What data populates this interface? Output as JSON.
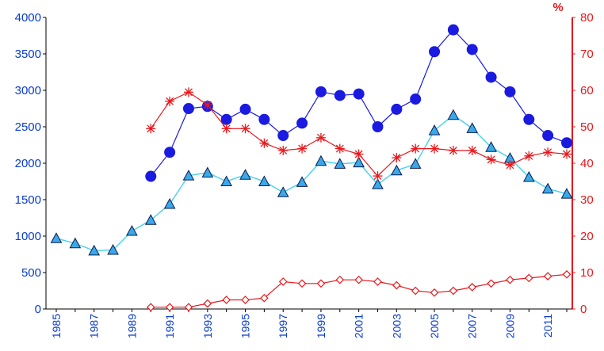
{
  "chart_data": {
    "type": "line",
    "x": [
      1985,
      1986,
      1987,
      1988,
      1989,
      1990,
      1991,
      1992,
      1993,
      1994,
      1995,
      1996,
      1997,
      1998,
      1999,
      2000,
      2001,
      2002,
      2003,
      2004,
      2005,
      2006,
      2007,
      2008,
      2009,
      2010,
      2011,
      2012
    ],
    "x_tick_labels": [
      "1985",
      "1987",
      "1989",
      "1991",
      "1993",
      "1995",
      "1997",
      "1999",
      "2001",
      "2003",
      "2005",
      "2007",
      "2009",
      "2011"
    ],
    "y_left": {
      "lim": [
        0,
        4000
      ],
      "ticks": [
        "0",
        "500",
        "1000",
        "1500",
        "2000",
        "2500",
        "3000",
        "3500",
        "4000"
      ],
      "color": "#0a3ccf"
    },
    "y_right": {
      "lim": [
        0,
        80
      ],
      "ticks": [
        "0",
        "10",
        "20",
        "30",
        "40",
        "50",
        "60",
        "70",
        "80"
      ],
      "unit": "%",
      "color": "#e8181c"
    },
    "grid": false,
    "series": [
      {
        "axis": "left",
        "marker": "circle",
        "color": "#1a1ae0",
        "values": [
          null,
          null,
          null,
          null,
          null,
          1820,
          2150,
          2750,
          2780,
          2600,
          2740,
          2600,
          2380,
          2550,
          2980,
          2930,
          2950,
          2500,
          2740,
          2880,
          3530,
          3830,
          3560,
          3180,
          2980,
          2600,
          2380,
          2280
        ]
      },
      {
        "axis": "left",
        "marker": "triangle",
        "color": "#4fd2f0",
        "marker_fill": "#3aa9ea",
        "values": [
          970,
          900,
          800,
          810,
          1070,
          1220,
          1440,
          1830,
          1870,
          1750,
          1840,
          1750,
          1600,
          1740,
          2030,
          1990,
          2010,
          1710,
          1900,
          1990,
          2450,
          2660,
          2480,
          2220,
          2070,
          1810,
          1650,
          1580
        ]
      },
      {
        "axis": "right",
        "marker": "asterisk",
        "color": "#e8181c",
        "values": [
          null,
          null,
          null,
          null,
          null,
          49.5,
          57,
          59.5,
          56,
          49.5,
          49.5,
          45.5,
          43.5,
          44,
          47,
          44,
          42.5,
          36.5,
          41.5,
          44,
          44,
          43.5,
          43.5,
          41,
          39.5,
          42,
          43,
          42.5
        ]
      },
      {
        "axis": "right",
        "marker": "diamond",
        "color": "#e8181c",
        "values": [
          null,
          null,
          null,
          null,
          null,
          0.5,
          0.5,
          0.5,
          1.5,
          2.5,
          2.5,
          3,
          7.5,
          7,
          7,
          8,
          8,
          7.5,
          6.5,
          5,
          4.5,
          5,
          6,
          7,
          8,
          8.5,
          9,
          9.5
        ]
      }
    ]
  }
}
